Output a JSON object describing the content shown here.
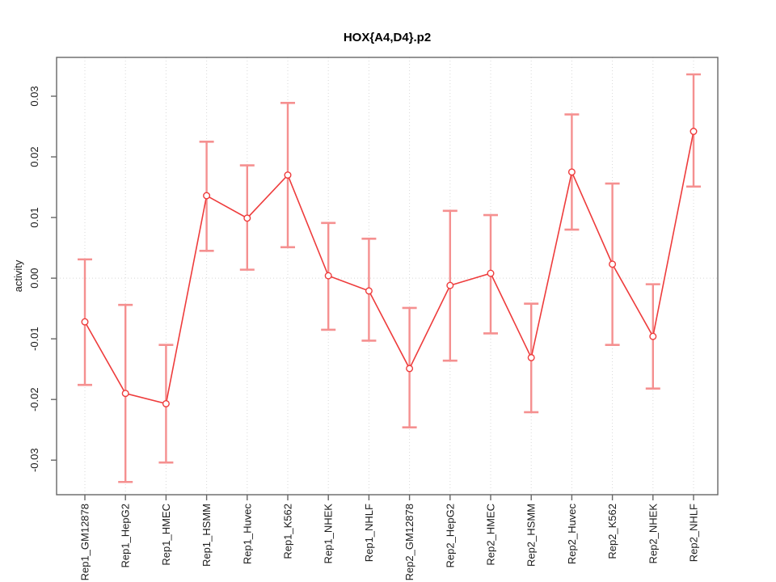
{
  "chart_data": {
    "type": "scatter",
    "title": "HOX{A4,D4}.p2",
    "xlabel": "",
    "ylabel": "activity",
    "categories": [
      "Rep1_GM12878",
      "Rep1_HepG2",
      "Rep1_HMEC",
      "Rep1_HSMM",
      "Rep1_Huvec",
      "Rep1_K562",
      "Rep1_NHEK",
      "Rep1_NHLF",
      "Rep2_GM12878",
      "Rep2_HepG2",
      "Rep2_HMEC",
      "Rep2_HSMM",
      "Rep2_Huvec",
      "Rep2_K562",
      "Rep2_NHEK",
      "Rep2_NHLF"
    ],
    "series": [
      {
        "name": "activity",
        "values": [
          -0.0072,
          -0.019,
          -0.0207,
          0.0136,
          0.0099,
          0.017,
          0.0004,
          -0.0021,
          -0.0149,
          -0.0012,
          0.0008,
          -0.0131,
          0.0175,
          0.0023,
          -0.0096,
          0.0242
        ],
        "error_low": [
          -0.0176,
          -0.0336,
          -0.0304,
          0.0045,
          0.0014,
          0.0051,
          -0.0085,
          -0.0103,
          -0.0246,
          -0.0136,
          -0.0091,
          -0.0221,
          0.008,
          -0.011,
          -0.0182,
          0.0151
        ],
        "error_high": [
          0.0031,
          -0.0044,
          -0.011,
          0.0225,
          0.0186,
          0.0289,
          0.0091,
          0.0065,
          -0.0049,
          0.0111,
          0.0104,
          -0.0042,
          0.027,
          0.0156,
          -0.001,
          0.0336
        ]
      }
    ],
    "ylim": [
      -0.0357,
      0.0364
    ],
    "yticks": [
      -0.03,
      -0.02,
      -0.01,
      0.0,
      0.01,
      0.02,
      0.03
    ],
    "grid": "dotted vertical line at each category; dotted horizontal line at y=0",
    "legend_position": "none",
    "marker": "open-circle",
    "colors": {
      "line": "#ee3c3c",
      "error_bar": "#f59090",
      "grid": "#d8d8d8",
      "axis": "#666666",
      "tick_label": "#1a1a1a",
      "background": "#ffffff"
    }
  }
}
